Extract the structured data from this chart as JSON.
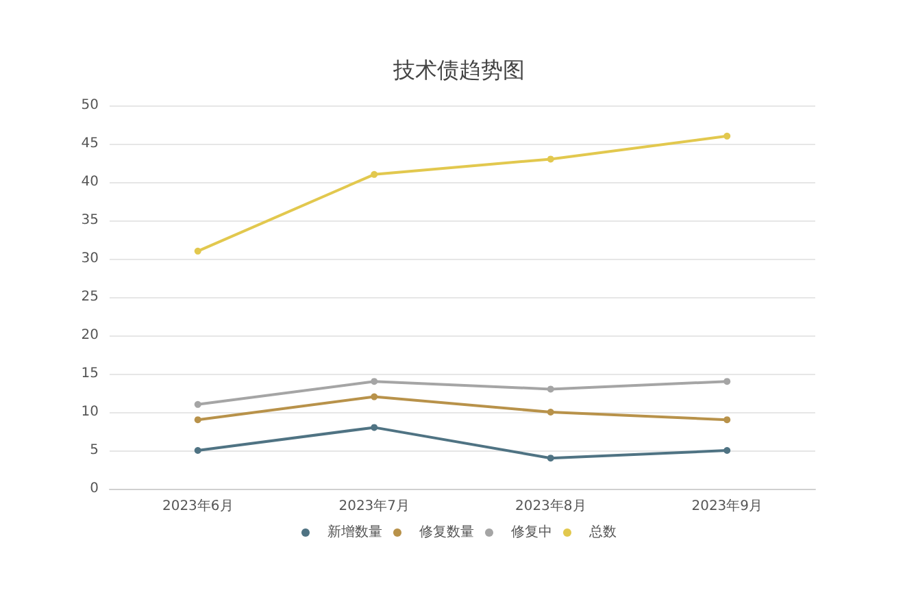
{
  "chart_data": {
    "type": "line",
    "title": "技术债趋势图",
    "categories": [
      "2023年6月",
      "2023年7月",
      "2023年8月",
      "2023年9月"
    ],
    "series": [
      {
        "name": "新增数量",
        "color": "#4f7383",
        "values": [
          5,
          8,
          4,
          5
        ]
      },
      {
        "name": "修复数量",
        "color": "#b8924a",
        "values": [
          9,
          12,
          10,
          9
        ]
      },
      {
        "name": "修复中",
        "color": "#a5a5a5",
        "values": [
          11,
          14,
          13,
          14
        ]
      },
      {
        "name": "总数",
        "color": "#e2c84e",
        "values": [
          31,
          41,
          43,
          46
        ]
      }
    ],
    "ylim": [
      0,
      50
    ],
    "yticks": [
      0,
      5,
      10,
      15,
      20,
      25,
      30,
      35,
      40,
      45,
      50
    ],
    "grid": "y",
    "legend": "bottom",
    "marker": "circle",
    "line_style": "solid"
  }
}
